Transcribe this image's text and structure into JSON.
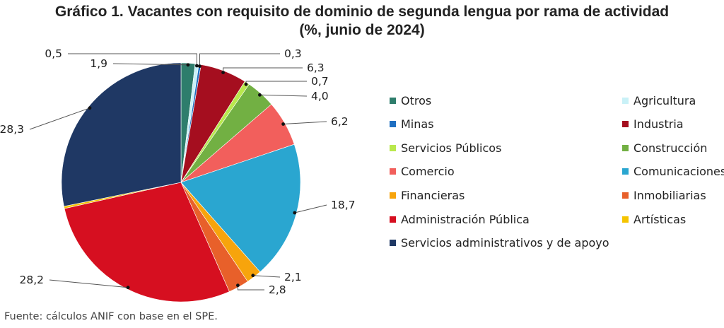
{
  "header": {
    "title_line1": "Gráfico 1. Vacantes con requisito de dominio de segunda lengua por rama de actividad",
    "title_line2": "(%, junio de 2024)"
  },
  "footer": {
    "source": "Fuente: cálculos ANIF con base en el SPE."
  },
  "chart_data": {
    "type": "pie",
    "title": "Gráfico 1. Vacantes con requisito de dominio de segunda lengua por rama de actividad (%, junio de 2024)",
    "legend_position": "right",
    "slices": [
      {
        "name": "Otros",
        "value": 1.9,
        "label": "1,9",
        "color": "#2e7d6c"
      },
      {
        "name": "Agricultura",
        "value": 0.5,
        "label": "0,5",
        "color": "#c9f1f7"
      },
      {
        "name": "Minas",
        "value": 0.3,
        "label": "0,3",
        "color": "#1f6fc1"
      },
      {
        "name": "Industria",
        "value": 6.3,
        "label": "6,3",
        "color": "#a50e1f"
      },
      {
        "name": "Servicios Públicos",
        "value": 0.7,
        "label": "0,7",
        "color": "#b9e84d"
      },
      {
        "name": "Construcción",
        "value": 4.0,
        "label": "4,0",
        "color": "#72b043"
      },
      {
        "name": "Comercio",
        "value": 6.2,
        "label": "6,2",
        "color": "#f25f5c"
      },
      {
        "name": "Comunicaciones",
        "value": 18.7,
        "label": "18,7",
        "color": "#2aa6d0"
      },
      {
        "name": "Financieras",
        "value": 2.1,
        "label": "2,1",
        "color": "#f7a40c"
      },
      {
        "name": "Inmobiliarias",
        "value": 2.8,
        "label": "2,8",
        "color": "#e8602a"
      },
      {
        "name": "Administración Pública",
        "value": 28.2,
        "label": "28,2",
        "color": "#d60f20"
      },
      {
        "name": "Artísticas",
        "value": 0.3,
        "label": "",
        "color": "#f5c400"
      },
      {
        "name": "Servicios administrativos y de apoyo",
        "value": 28.3,
        "label": "28,3",
        "color": "#1f3864"
      }
    ]
  }
}
